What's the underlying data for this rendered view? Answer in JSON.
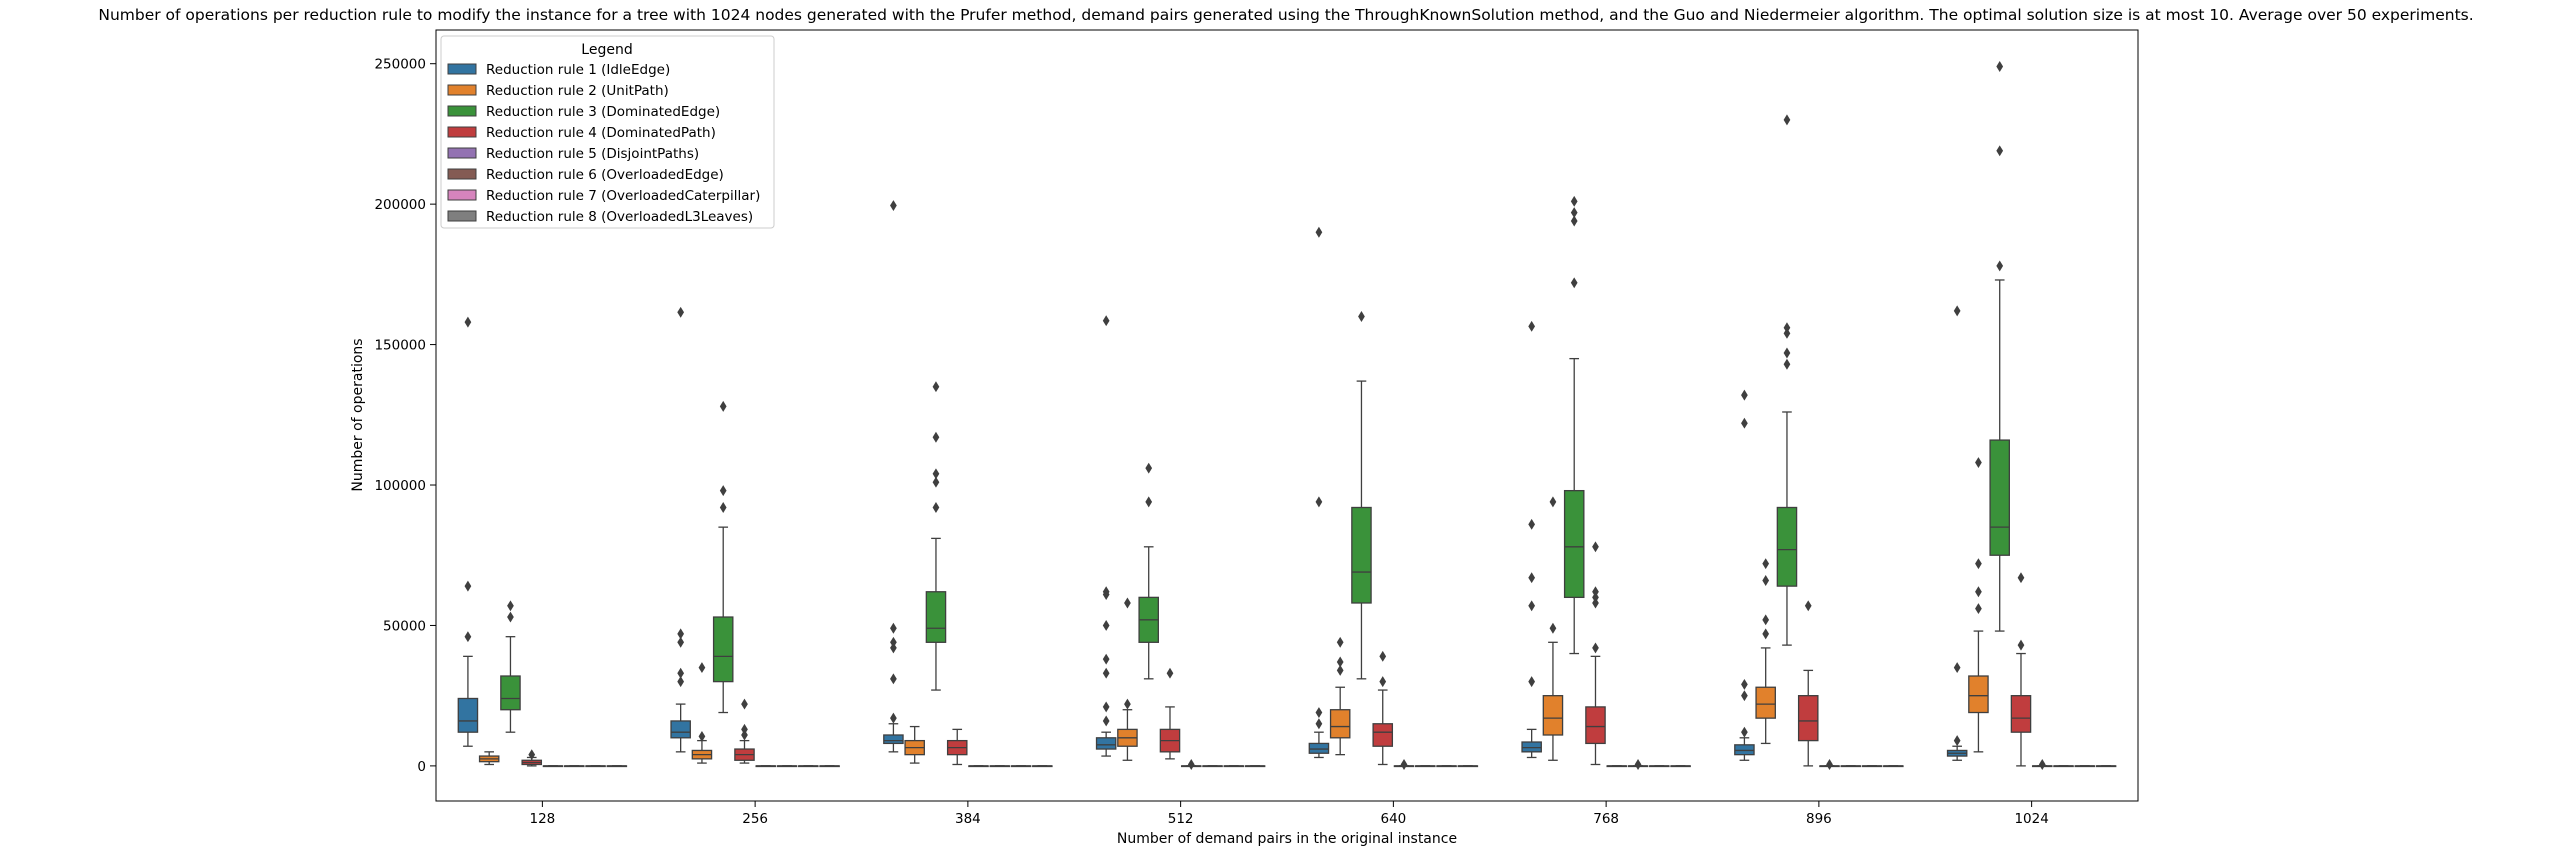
{
  "chart_data": {
    "type": "box",
    "title": "Number of operations per reduction rule to modify the instance for a tree with 1024 nodes generated with the Prufer method, demand pairs generated using the ThroughKnownSolution method, and the Guo and Niedermeier algorithm. The optimal solution size is at most 10. Average over 50 experiments.",
    "xlabel": "Number of demand pairs in the original instance",
    "ylabel": "Number of operations",
    "categories": [
      "128",
      "256",
      "384",
      "512",
      "640",
      "768",
      "896",
      "1024"
    ],
    "yticks": [
      0,
      50000,
      100000,
      150000,
      200000,
      250000
    ],
    "ytick_labels": [
      "0",
      "50000",
      "100000",
      "150000",
      "200000",
      "250000"
    ],
    "ylim": [
      -12500,
      262000
    ],
    "grid": false,
    "legend": {
      "title": "Legend",
      "position": "top-left",
      "entries": [
        "Reduction rule 1 (IdleEdge)",
        "Reduction rule 2 (UnitPath)",
        "Reduction rule 3 (DominatedEdge)",
        "Reduction rule 4 (DominatedPath)",
        "Reduction rule 5 (DisjointPaths)",
        "Reduction rule 6 (OverloadedEdge)",
        "Reduction rule 7 (OverloadedCaterpillar)",
        "Reduction rule 8 (OverloadedL3Leaves)"
      ]
    },
    "colors": [
      "#3274a1",
      "#e1812c",
      "#3a923a",
      "#c03d3e",
      "#9372b2",
      "#845b53",
      "#d684bd",
      "#7f7f7f"
    ],
    "series": [
      {
        "name": "Reduction rule 1 (IdleEdge)",
        "boxes": [
          {
            "q1": 12000,
            "median": 16000,
            "q3": 24000,
            "whislo": 7000,
            "whishi": 39000,
            "fliers": [
              64000,
              46000,
              158000
            ]
          },
          {
            "q1": 10000,
            "median": 12000,
            "q3": 16000,
            "whislo": 5000,
            "whishi": 22000,
            "fliers": [
              30000,
              33000,
              44000,
              47000,
              161500
            ]
          },
          {
            "q1": 8000,
            "median": 9000,
            "q3": 11000,
            "whislo": 5000,
            "whishi": 15000,
            "fliers": [
              17000,
              31000,
              42000,
              44000,
              49000,
              199500
            ]
          },
          {
            "q1": 6000,
            "median": 7500,
            "q3": 10000,
            "whislo": 3500,
            "whishi": 12000,
            "fliers": [
              16000,
              21000,
              33000,
              38000,
              50000,
              61000,
              62000,
              158500
            ]
          },
          {
            "q1": 4500,
            "median": 6000,
            "q3": 8000,
            "whislo": 3000,
            "whishi": 12000,
            "fliers": [
              15000,
              19000,
              94000,
              190000
            ]
          },
          {
            "q1": 5000,
            "median": 6500,
            "q3": 8500,
            "whislo": 3000,
            "whishi": 13000,
            "fliers": [
              30000,
              57000,
              67000,
              86000,
              156500
            ]
          },
          {
            "q1": 4000,
            "median": 5500,
            "q3": 7500,
            "whislo": 2000,
            "whishi": 10000,
            "fliers": [
              12000,
              25000,
              29000,
              122000,
              132000
            ]
          },
          {
            "q1": 3500,
            "median": 4500,
            "q3": 5500,
            "whislo": 2000,
            "whishi": 7000,
            "fliers": [
              9000,
              35000,
              162000
            ]
          }
        ]
      },
      {
        "name": "Reduction rule 2 (UnitPath)",
        "boxes": [
          {
            "q1": 1500,
            "median": 2500,
            "q3": 3500,
            "whislo": 500,
            "whishi": 5000,
            "fliers": []
          },
          {
            "q1": 2500,
            "median": 4000,
            "q3": 5500,
            "whislo": 1000,
            "whishi": 9000,
            "fliers": [
              10500,
              35000
            ]
          },
          {
            "q1": 4000,
            "median": 6500,
            "q3": 9000,
            "whislo": 1000,
            "whishi": 14000,
            "fliers": []
          },
          {
            "q1": 7000,
            "median": 10000,
            "q3": 13000,
            "whislo": 2000,
            "whishi": 20000,
            "fliers": [
              22000,
              58000
            ]
          },
          {
            "q1": 10000,
            "median": 14000,
            "q3": 20000,
            "whislo": 4000,
            "whishi": 28000,
            "fliers": [
              34000,
              37000,
              44000
            ]
          },
          {
            "q1": 11000,
            "median": 17000,
            "q3": 25000,
            "whislo": 2000,
            "whishi": 44000,
            "fliers": [
              49000,
              94000
            ]
          },
          {
            "q1": 17000,
            "median": 22000,
            "q3": 28000,
            "whislo": 8000,
            "whishi": 42000,
            "fliers": [
              47000,
              52000,
              66000,
              72000
            ]
          },
          {
            "q1": 19000,
            "median": 25000,
            "q3": 32000,
            "whislo": 5000,
            "whishi": 48000,
            "fliers": [
              56000,
              62000,
              72000,
              108000
            ]
          }
        ]
      },
      {
        "name": "Reduction rule 3 (DominatedEdge)",
        "boxes": [
          {
            "q1": 20000,
            "median": 24000,
            "q3": 32000,
            "whislo": 12000,
            "whishi": 46000,
            "fliers": [
              53000,
              57000
            ]
          },
          {
            "q1": 30000,
            "median": 39000,
            "q3": 53000,
            "whislo": 19000,
            "whishi": 85000,
            "fliers": [
              92000,
              98000,
              128000
            ]
          },
          {
            "q1": 44000,
            "median": 49000,
            "q3": 62000,
            "whislo": 27000,
            "whishi": 81000,
            "fliers": [
              92000,
              101000,
              104000,
              117000,
              135000
            ]
          },
          {
            "q1": 44000,
            "median": 52000,
            "q3": 60000,
            "whislo": 31000,
            "whishi": 78000,
            "fliers": [
              94000,
              106000
            ]
          },
          {
            "q1": 58000,
            "median": 69000,
            "q3": 92000,
            "whislo": 31000,
            "whishi": 137000,
            "fliers": [
              160000
            ]
          },
          {
            "q1": 60000,
            "median": 78000,
            "q3": 98000,
            "whislo": 40000,
            "whishi": 145000,
            "fliers": [
              172000,
              194000,
              197000,
              201000
            ]
          },
          {
            "q1": 64000,
            "median": 77000,
            "q3": 92000,
            "whislo": 43000,
            "whishi": 126000,
            "fliers": [
              143000,
              147000,
              154000,
              156000,
              230000
            ]
          },
          {
            "q1": 75000,
            "median": 85000,
            "q3": 116000,
            "whislo": 48000,
            "whishi": 173000,
            "fliers": [
              178000,
              219000,
              249000
            ]
          }
        ]
      },
      {
        "name": "Reduction rule 4 (DominatedPath)",
        "boxes": [
          {
            "q1": 500,
            "median": 1200,
            "q3": 2000,
            "whislo": 0,
            "whishi": 3000,
            "fliers": [
              4000
            ]
          },
          {
            "q1": 2000,
            "median": 4000,
            "q3": 6000,
            "whislo": 1000,
            "whishi": 9000,
            "fliers": [
              11000,
              13000,
              22000
            ]
          },
          {
            "q1": 4000,
            "median": 6500,
            "q3": 9000,
            "whislo": 500,
            "whishi": 13000,
            "fliers": []
          },
          {
            "q1": 5000,
            "median": 9000,
            "q3": 13000,
            "whislo": 2500,
            "whishi": 21000,
            "fliers": [
              33000
            ]
          },
          {
            "q1": 7000,
            "median": 12000,
            "q3": 15000,
            "whislo": 500,
            "whishi": 27000,
            "fliers": [
              30000,
              39000
            ]
          },
          {
            "q1": 8000,
            "median": 14000,
            "q3": 21000,
            "whislo": 500,
            "whishi": 39000,
            "fliers": [
              42000,
              58000,
              60000,
              62000,
              78000
            ]
          },
          {
            "q1": 9000,
            "median": 16000,
            "q3": 25000,
            "whislo": 0,
            "whishi": 34000,
            "fliers": [
              57000
            ]
          },
          {
            "q1": 12000,
            "median": 17000,
            "q3": 25000,
            "whislo": 0,
            "whishi": 40000,
            "fliers": [
              43000,
              67000
            ]
          }
        ]
      },
      {
        "name": "Reduction rule 5 (DisjointPaths)",
        "boxes": [
          {
            "q1": 0,
            "median": 0,
            "q3": 0,
            "whislo": 0,
            "whishi": 0,
            "fliers": []
          },
          {
            "q1": 0,
            "median": 0,
            "q3": 0,
            "whislo": 0,
            "whishi": 0,
            "fliers": []
          },
          {
            "q1": 0,
            "median": 0,
            "q3": 0,
            "whislo": 0,
            "whishi": 0,
            "fliers": []
          },
          {
            "q1": 0,
            "median": 0,
            "q3": 0,
            "whislo": 0,
            "whishi": 0,
            "fliers": [
              500
            ]
          },
          {
            "q1": 0,
            "median": 0,
            "q3": 0,
            "whislo": 0,
            "whishi": 0,
            "fliers": [
              500
            ]
          },
          {
            "q1": 0,
            "median": 0,
            "q3": 0,
            "whislo": 0,
            "whishi": 0,
            "fliers": []
          },
          {
            "q1": 0,
            "median": 0,
            "q3": 0,
            "whislo": 0,
            "whishi": 0,
            "fliers": [
              500
            ]
          },
          {
            "q1": 0,
            "median": 0,
            "q3": 0,
            "whislo": 0,
            "whishi": 0,
            "fliers": [
              500
            ]
          }
        ]
      },
      {
        "name": "Reduction rule 6 (OverloadedEdge)",
        "boxes": [
          {
            "q1": 0,
            "median": 0,
            "q3": 0,
            "whislo": 0,
            "whishi": 0,
            "fliers": []
          },
          {
            "q1": 0,
            "median": 0,
            "q3": 0,
            "whislo": 0,
            "whishi": 0,
            "fliers": []
          },
          {
            "q1": 0,
            "median": 0,
            "q3": 0,
            "whislo": 0,
            "whishi": 0,
            "fliers": []
          },
          {
            "q1": 0,
            "median": 0,
            "q3": 0,
            "whislo": 0,
            "whishi": 0,
            "fliers": []
          },
          {
            "q1": 0,
            "median": 0,
            "q3": 0,
            "whislo": 0,
            "whishi": 0,
            "fliers": []
          },
          {
            "q1": 0,
            "median": 0,
            "q3": 0,
            "whislo": 0,
            "whishi": 0,
            "fliers": [
              500
            ]
          },
          {
            "q1": 0,
            "median": 0,
            "q3": 0,
            "whislo": 0,
            "whishi": 0,
            "fliers": []
          },
          {
            "q1": 0,
            "median": 0,
            "q3": 0,
            "whislo": 0,
            "whishi": 0,
            "fliers": []
          }
        ]
      },
      {
        "name": "Reduction rule 7 (OverloadedCaterpillar)",
        "boxes": [
          {
            "q1": 0,
            "median": 0,
            "q3": 0,
            "whislo": 0,
            "whishi": 0,
            "fliers": []
          },
          {
            "q1": 0,
            "median": 0,
            "q3": 0,
            "whislo": 0,
            "whishi": 0,
            "fliers": []
          },
          {
            "q1": 0,
            "median": 0,
            "q3": 0,
            "whislo": 0,
            "whishi": 0,
            "fliers": []
          },
          {
            "q1": 0,
            "median": 0,
            "q3": 0,
            "whislo": 0,
            "whishi": 0,
            "fliers": []
          },
          {
            "q1": 0,
            "median": 0,
            "q3": 0,
            "whislo": 0,
            "whishi": 0,
            "fliers": []
          },
          {
            "q1": 0,
            "median": 0,
            "q3": 0,
            "whislo": 0,
            "whishi": 0,
            "fliers": []
          },
          {
            "q1": 0,
            "median": 0,
            "q3": 0,
            "whislo": 0,
            "whishi": 0,
            "fliers": []
          },
          {
            "q1": 0,
            "median": 0,
            "q3": 0,
            "whislo": 0,
            "whishi": 0,
            "fliers": []
          }
        ]
      },
      {
        "name": "Reduction rule 8 (OverloadedL3Leaves)",
        "boxes": [
          {
            "q1": 0,
            "median": 0,
            "q3": 0,
            "whislo": 0,
            "whishi": 0,
            "fliers": []
          },
          {
            "q1": 0,
            "median": 0,
            "q3": 0,
            "whislo": 0,
            "whishi": 0,
            "fliers": []
          },
          {
            "q1": 0,
            "median": 0,
            "q3": 0,
            "whislo": 0,
            "whishi": 0,
            "fliers": []
          },
          {
            "q1": 0,
            "median": 0,
            "q3": 0,
            "whislo": 0,
            "whishi": 0,
            "fliers": []
          },
          {
            "q1": 0,
            "median": 0,
            "q3": 0,
            "whislo": 0,
            "whishi": 0,
            "fliers": []
          },
          {
            "q1": 0,
            "median": 0,
            "q3": 0,
            "whislo": 0,
            "whishi": 0,
            "fliers": []
          },
          {
            "q1": 0,
            "median": 0,
            "q3": 0,
            "whislo": 0,
            "whishi": 0,
            "fliers": []
          },
          {
            "q1": 0,
            "median": 0,
            "q3": 0,
            "whislo": 0,
            "whishi": 0,
            "fliers": []
          }
        ]
      }
    ]
  }
}
